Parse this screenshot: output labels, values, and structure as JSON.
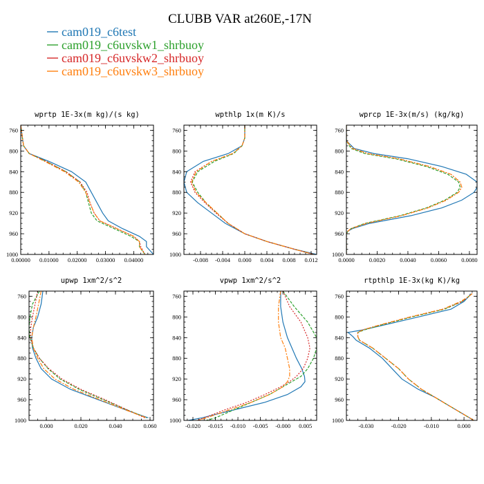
{
  "figure": {
    "title": "CLUBB VAR at260E,-17N",
    "legend": [
      {
        "name": "cam019_c6test",
        "color": "#1f77b4"
      },
      {
        "name": "cam019_c6uvskw1_shrbuoy",
        "color": "#2ca02c"
      },
      {
        "name": "cam019_c6uvskw2_shrbuoy",
        "color": "#d62728"
      },
      {
        "name": "cam019_c6uvskw3_shrbuoy",
        "color": "#ff7f0e"
      }
    ]
  },
  "chart_data": [
    {
      "type": "line",
      "title": "wprtp  1E-3x(m kg)/(s kg)",
      "xlim": [
        0,
        0.047
      ],
      "ylim": [
        1000,
        750
      ],
      "xticks": [
        0,
        0.01,
        0.02,
        0.03,
        0.04
      ],
      "xtick_labels": [
        "0.00000",
        "0.01000",
        "0.02000",
        "0.03000",
        "0.04000"
      ],
      "yticks": [
        760,
        800,
        840,
        880,
        920,
        960,
        1000
      ],
      "ytick_labels": [
        "760",
        "800",
        "840",
        "880",
        "920",
        "960",
        "1000"
      ],
      "y": [
        750,
        770,
        790,
        805,
        820,
        840,
        860,
        880,
        900,
        920,
        935,
        950,
        965,
        975,
        985,
        1000
      ],
      "series": [
        {
          "name": "cam019_c6test",
          "values": [
            0,
            0.0005,
            0.001,
            0.003,
            0.01,
            0.018,
            0.023,
            0.025,
            0.027,
            0.029,
            0.031,
            0.036,
            0.042,
            0.0445,
            0.0445,
            0.047
          ]
        },
        {
          "name": "cam019_c6uvskw1_shrbuoy",
          "values": [
            0,
            0.0005,
            0.001,
            0.003,
            0.009,
            0.016,
            0.021,
            0.023,
            0.024,
            0.025,
            0.027,
            0.033,
            0.039,
            0.042,
            0.042,
            0.044
          ]
        },
        {
          "name": "cam019_c6uvskw2_shrbuoy",
          "values": [
            0,
            0.0005,
            0.001,
            0.003,
            0.009,
            0.016,
            0.021,
            0.0235,
            0.0245,
            0.026,
            0.028,
            0.034,
            0.04,
            0.042,
            0.0425,
            0.044
          ]
        },
        {
          "name": "cam019_c6uvskw3_shrbuoy",
          "values": [
            0,
            0.0005,
            0.001,
            0.003,
            0.0085,
            0.0155,
            0.0205,
            0.023,
            0.0245,
            0.026,
            0.028,
            0.034,
            0.04,
            0.042,
            0.042,
            0.044
          ]
        }
      ]
    },
    {
      "type": "line",
      "title": "wpthlp  1x(m K)/s",
      "xlim": [
        -0.011,
        0.013
      ],
      "ylim": [
        1000,
        750
      ],
      "xticks": [
        -0.008,
        -0.004,
        0,
        0.004,
        0.008,
        0.012
      ],
      "xtick_labels": [
        "-0.008",
        "-0.004",
        "0.000",
        "0.004",
        "0.008",
        "0.012"
      ],
      "yticks": [
        760,
        800,
        840,
        880,
        920,
        960,
        1000
      ],
      "ytick_labels": [
        "760",
        "800",
        "840",
        "880",
        "920",
        "960",
        "1000"
      ],
      "y": [
        750,
        775,
        790,
        805,
        820,
        840,
        860,
        880,
        900,
        920,
        940,
        960,
        975,
        990,
        1000
      ],
      "series": [
        {
          "name": "cam019_c6test",
          "values": [
            0,
            0,
            -0.0005,
            -0.003,
            -0.0075,
            -0.0105,
            -0.011,
            -0.0105,
            -0.0085,
            -0.006,
            -0.0035,
            0,
            0.004,
            0.009,
            0.013
          ]
        },
        {
          "name": "cam019_c6uvskw1_shrbuoy",
          "values": [
            0,
            0,
            -0.0005,
            -0.002,
            -0.0055,
            -0.0085,
            -0.0095,
            -0.0085,
            -0.007,
            -0.005,
            -0.003,
            0,
            0.004,
            0.009,
            0.0125
          ]
        },
        {
          "name": "cam019_c6uvskw2_shrbuoy",
          "values": [
            0,
            0,
            -0.0005,
            -0.0022,
            -0.006,
            -0.009,
            -0.0098,
            -0.009,
            -0.0072,
            -0.0052,
            -0.003,
            0,
            0.004,
            0.009,
            0.0125
          ]
        },
        {
          "name": "cam019_c6uvskw3_shrbuoy",
          "values": [
            0,
            0,
            -0.0005,
            -0.0022,
            -0.006,
            -0.0088,
            -0.0096,
            -0.0088,
            -0.007,
            -0.005,
            -0.003,
            0,
            0.004,
            0.009,
            0.0125
          ]
        }
      ]
    },
    {
      "type": "line",
      "title": "wprcp  1E-3x(m/s) (kg/kg)",
      "xlim": [
        0,
        0.0085
      ],
      "ylim": [
        1000,
        750
      ],
      "xticks": [
        0,
        0.002,
        0.004,
        0.006,
        0.008
      ],
      "xtick_labels": [
        "0.0000",
        "0.0020",
        "0.0040",
        "0.0060",
        "0.0080"
      ],
      "yticks": [
        760,
        800,
        840,
        880,
        920,
        960,
        1000
      ],
      "ytick_labels": [
        "760",
        "800",
        "840",
        "880",
        "920",
        "960",
        "1000"
      ],
      "y": [
        750,
        780,
        795,
        805,
        815,
        830,
        845,
        860,
        870,
        880,
        895,
        910,
        925,
        940,
        950,
        955,
        960,
        1000
      ],
      "series": [
        {
          "name": "cam019_c6test",
          "values": [
            0,
            0,
            0.0005,
            0.0018,
            0.004,
            0.0062,
            0.0078,
            0.0085,
            0.0085,
            0.0083,
            0.0075,
            0.0062,
            0.0042,
            0.0015,
            0.0004,
            0.0001,
            0,
            0
          ]
        },
        {
          "name": "cam019_c6uvskw1_shrbuoy",
          "values": [
            0,
            0,
            0.0003,
            0.0012,
            0.0032,
            0.0052,
            0.0066,
            0.0073,
            0.0074,
            0.0072,
            0.0064,
            0.0052,
            0.0035,
            0.0012,
            0.0003,
            0.0001,
            0,
            0
          ]
        },
        {
          "name": "cam019_c6uvskw2_shrbuoy",
          "values": [
            0,
            0,
            0.0004,
            0.0014,
            0.0034,
            0.0054,
            0.0068,
            0.0074,
            0.0075,
            0.0073,
            0.0065,
            0.0053,
            0.0036,
            0.0013,
            0.0003,
            0.0001,
            0,
            0
          ]
        },
        {
          "name": "cam019_c6uvskw3_shrbuoy",
          "values": [
            0,
            0,
            0.0004,
            0.0014,
            0.0034,
            0.0054,
            0.0068,
            0.0074,
            0.0075,
            0.0073,
            0.0065,
            0.0053,
            0.0036,
            0.0013,
            0.0003,
            0.0001,
            0,
            0
          ]
        }
      ]
    },
    {
      "type": "line",
      "title": "upwp  1xm^2/s^2",
      "xlim": [
        -0.01,
        0.062
      ],
      "ylim": [
        1000,
        750
      ],
      "xticks": [
        0,
        0.02,
        0.04,
        0.06
      ],
      "xtick_labels": [
        "0.000",
        "0.020",
        "0.040",
        "0.060"
      ],
      "yticks": [
        760,
        800,
        840,
        880,
        920,
        960,
        1000
      ],
      "ytick_labels": [
        "760",
        "800",
        "840",
        "880",
        "920",
        "960",
        "1000"
      ],
      "y": [
        750,
        775,
        800,
        820,
        840,
        860,
        880,
        900,
        920,
        940,
        960,
        980,
        995
      ],
      "series": [
        {
          "name": "cam019_c6test",
          "values": [
            -0.002,
            -0.003,
            -0.005,
            -0.0075,
            -0.0085,
            -0.008,
            -0.006,
            -0.003,
            0.003,
            0.014,
            0.03,
            0.046,
            0.059
          ]
        },
        {
          "name": "cam019_c6uvskw1_shrbuoy",
          "values": [
            -0.004,
            -0.008,
            -0.0095,
            -0.01,
            -0.0095,
            -0.0075,
            -0.004,
            0.001,
            0.008,
            0.019,
            0.033,
            0.047,
            0.058
          ]
        },
        {
          "name": "cam019_c6uvskw2_shrbuoy",
          "values": [
            -0.005,
            -0.0065,
            -0.008,
            -0.009,
            -0.0092,
            -0.0075,
            -0.004,
            0.0015,
            0.009,
            0.02,
            0.034,
            0.047,
            0.057
          ]
        },
        {
          "name": "cam019_c6uvskw3_shrbuoy",
          "values": [
            -0.003,
            -0.0045,
            -0.006,
            -0.0075,
            -0.0085,
            -0.0075,
            -0.005,
            -0.0015,
            0.005,
            0.016,
            0.031,
            0.046,
            0.058
          ]
        }
      ]
    },
    {
      "type": "line",
      "title": "vpwp  1xm^2/s^2",
      "xlim": [
        -0.022,
        0.0075
      ],
      "ylim": [
        1000,
        750
      ],
      "xticks": [
        -0.02,
        -0.015,
        -0.01,
        -0.005,
        0,
        0.005
      ],
      "xtick_labels": [
        "-0.020",
        "-0.015",
        "-0.010",
        "-0.005",
        "-0.000",
        "0.005"
      ],
      "yticks": [
        760,
        800,
        840,
        880,
        920,
        960,
        1000
      ],
      "ytick_labels": [
        "760",
        "800",
        "840",
        "880",
        "920",
        "960",
        "1000"
      ],
      "y": [
        750,
        780,
        810,
        840,
        860,
        880,
        900,
        915,
        925,
        935,
        950,
        965,
        980,
        995,
        1000
      ],
      "series": [
        {
          "name": "cam019_c6test",
          "values": [
            -0.0005,
            -0.0005,
            0,
            0.001,
            0.002,
            0.003,
            0.0042,
            0.0048,
            0.0049,
            0.004,
            0.001,
            -0.004,
            -0.011,
            -0.018,
            -0.021
          ]
        },
        {
          "name": "cam019_c6uvskw1_shrbuoy",
          "values": [
            0,
            0.0025,
            0.0055,
            0.0075,
            0.0075,
            0.0068,
            0.0055,
            0.004,
            0.002,
            0,
            -0.003,
            -0.007,
            -0.011,
            -0.015,
            -0.017
          ]
        },
        {
          "name": "cam019_c6uvskw2_shrbuoy",
          "values": [
            0,
            0.0015,
            0.004,
            0.0055,
            0.006,
            0.0055,
            0.0045,
            0.003,
            0.0015,
            -0.0005,
            -0.004,
            -0.008,
            -0.013,
            -0.0175,
            -0.019
          ]
        },
        {
          "name": "cam019_c6uvskw3_shrbuoy",
          "values": [
            -0.0005,
            -0.001,
            -0.001,
            -0.0005,
            0.0005,
            0.001,
            0.0015,
            0.0015,
            0.001,
            0,
            -0.003,
            -0.007,
            -0.012,
            -0.017,
            -0.019
          ]
        }
      ]
    },
    {
      "type": "line",
      "title": "rtpthlp  1E-3x(kg K)/kg",
      "xlim": [
        -0.036,
        0.004
      ],
      "ylim": [
        1000,
        750
      ],
      "xticks": [
        -0.03,
        -0.02,
        -0.01,
        0
      ],
      "xtick_labels": [
        "-0.030",
        "-0.020",
        "-0.010",
        "0.000"
      ],
      "yticks": [
        760,
        800,
        840,
        880,
        920,
        960,
        1000
      ],
      "ytick_labels": [
        "760",
        "800",
        "840",
        "880",
        "920",
        "960",
        "1000"
      ],
      "y": [
        755,
        760,
        770,
        785,
        800,
        815,
        825,
        830,
        838,
        845,
        860,
        880,
        900,
        920,
        940,
        955,
        970,
        985,
        1000
      ],
      "series": [
        {
          "name": "cam019_c6test",
          "values": [
            0.002,
            0.0015,
            0,
            -0.004,
            -0.014,
            -0.024,
            -0.031,
            -0.0355,
            -0.034,
            -0.033,
            -0.029,
            -0.025,
            -0.022,
            -0.019,
            -0.014,
            -0.009,
            -0.005,
            -0.001,
            0.003
          ]
        },
        {
          "name": "cam019_c6uvskw1_shrbuoy",
          "values": [
            0.0025,
            0.0015,
            -0.0005,
            -0.006,
            -0.016,
            -0.025,
            -0.0305,
            -0.0325,
            -0.0325,
            -0.032,
            -0.028,
            -0.024,
            -0.02,
            -0.017,
            -0.013,
            -0.009,
            -0.005,
            -0.001,
            0.003
          ]
        },
        {
          "name": "cam019_c6uvskw2_shrbuoy",
          "values": [
            0.0025,
            0.0015,
            -0.0005,
            -0.0065,
            -0.0165,
            -0.0255,
            -0.031,
            -0.0325,
            -0.0325,
            -0.032,
            -0.028,
            -0.024,
            -0.02,
            -0.017,
            -0.013,
            -0.009,
            -0.005,
            -0.001,
            0.003
          ]
        },
        {
          "name": "cam019_c6uvskw3_shrbuoy",
          "values": [
            0.0025,
            0.0015,
            -0.001,
            -0.0065,
            -0.0165,
            -0.0255,
            -0.031,
            -0.0325,
            -0.0325,
            -0.032,
            -0.028,
            -0.024,
            -0.02,
            -0.017,
            -0.013,
            -0.009,
            -0.005,
            -0.001,
            0.003
          ]
        }
      ]
    }
  ]
}
